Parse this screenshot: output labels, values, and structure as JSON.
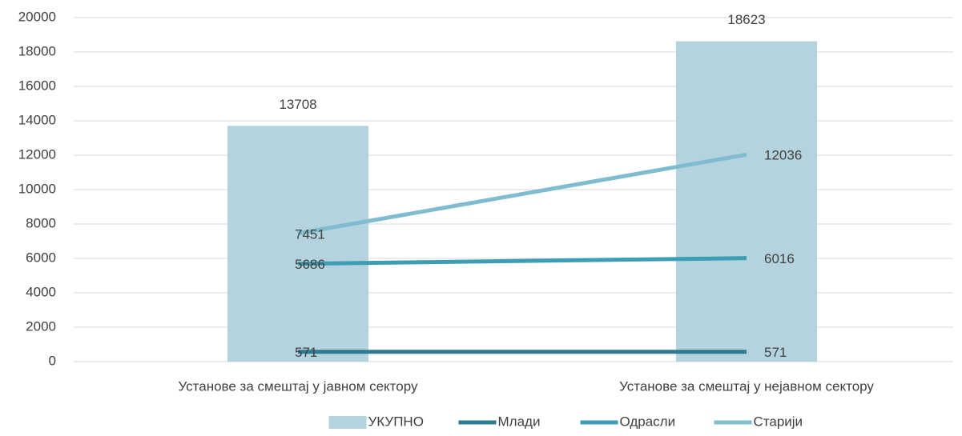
{
  "chart_data": {
    "type": "combo",
    "categories": [
      "Установе за смештај у јавном сектору",
      "Установе за смештај у нејавном сектору"
    ],
    "series": [
      {
        "name": "УКУПНО",
        "type": "bar",
        "color": "#b4d3de",
        "values": [
          13708,
          18623
        ]
      },
      {
        "name": "Млади",
        "type": "line",
        "color": "#2e7b8f",
        "values": [
          571,
          571
        ]
      },
      {
        "name": "Одрасли",
        "type": "line",
        "color": "#3d9db5",
        "values": [
          5686,
          6016
        ]
      },
      {
        "name": "Старији",
        "type": "line",
        "color": "#7fbccf",
        "values": [
          7451,
          12036
        ]
      }
    ],
    "ylim": [
      0,
      20000
    ],
    "yticks": [
      0,
      2000,
      4000,
      6000,
      8000,
      10000,
      12000,
      14000,
      16000,
      18000,
      20000
    ],
    "grid": true,
    "legend": "bottom"
  }
}
